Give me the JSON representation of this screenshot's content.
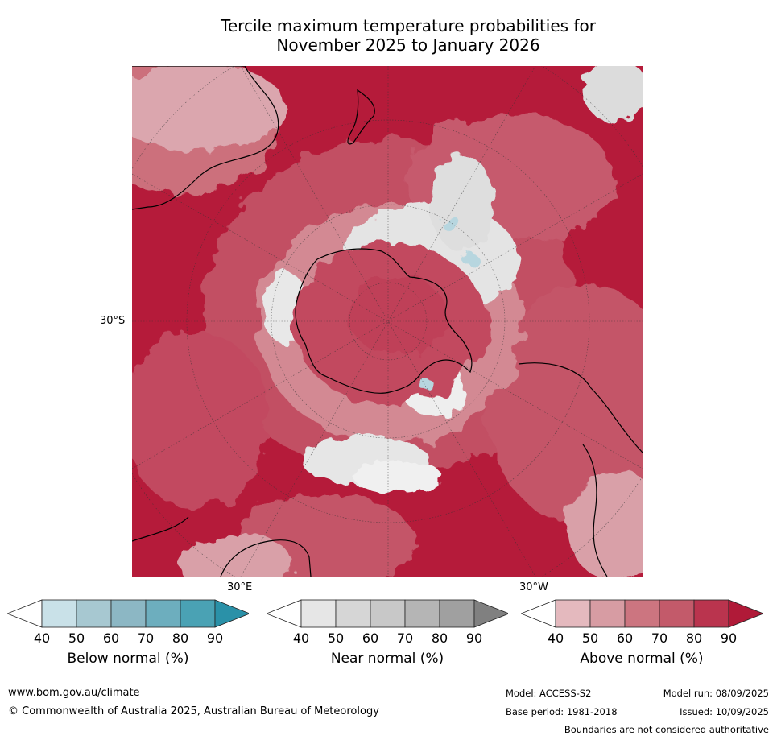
{
  "title": {
    "line1": "Tercile maximum temperature probabilities for",
    "line2": "November 2025 to January 2026"
  },
  "map": {
    "projection": "south-polar-stereographic",
    "latitude_label": "30°S",
    "longitude_labels": {
      "east": "30°E",
      "west": "30°W"
    },
    "colors": {
      "ocean_above_high": "#b51b3a",
      "ocean_above_mid": "#c55268",
      "above_low": "#d38993",
      "near_normal": "#e0e0e0",
      "below_normal_light": "#c5dfe6",
      "coastline": "#000000"
    }
  },
  "colorbars": [
    {
      "label": "Below normal (%)",
      "ticks": [
        "40",
        "50",
        "60",
        "70",
        "80",
        "90"
      ],
      "colors": [
        "#ffffff",
        "#c9e1e8",
        "#a7c8d1",
        "#8cb7c4",
        "#6daebe",
        "#4aa2b4",
        "#2a91a8"
      ]
    },
    {
      "label": "Near normal (%)",
      "ticks": [
        "40",
        "50",
        "60",
        "70",
        "80",
        "90"
      ],
      "colors": [
        "#ffffff",
        "#e6e6e6",
        "#d6d6d6",
        "#c8c8c8",
        "#b5b5b5",
        "#a0a0a0",
        "#808080"
      ]
    },
    {
      "label": "Above normal (%)",
      "ticks": [
        "40",
        "50",
        "60",
        "70",
        "80",
        "90"
      ],
      "colors": [
        "#ffffff",
        "#e4b9be",
        "#d79ca3",
        "#cc7580",
        "#c35a6a",
        "#ba344e",
        "#b01a38"
      ]
    }
  ],
  "footer": {
    "website": "www.bom.gov.au/climate",
    "copyright": "© Commonwealth of Australia 2025, Australian Bureau of Meteorology",
    "model": "Model: ACCESS-S2",
    "model_run": "Model run: 08/09/2025",
    "base_period": "Base period: 1981-2018",
    "issued": "Issued: 10/09/2025",
    "disclaimer": "Boundaries are not considered authoritative"
  }
}
